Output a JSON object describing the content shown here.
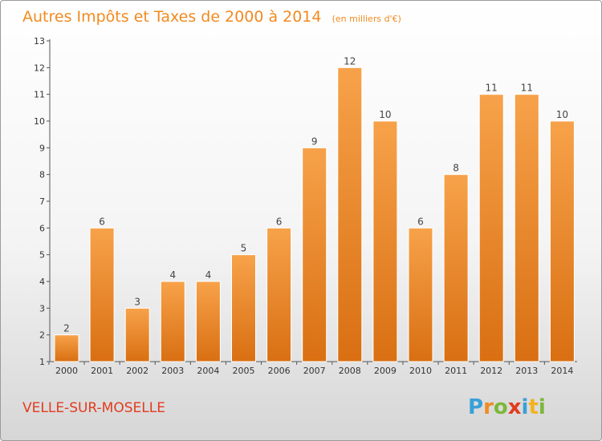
{
  "chart_data": {
    "type": "bar",
    "title": "Autres Impôts et Taxes de 2000 à 2014",
    "subtitle": "(en milliers d'€)",
    "categories": [
      "2000",
      "2001",
      "2002",
      "2003",
      "2004",
      "2005",
      "2006",
      "2007",
      "2008",
      "2009",
      "2010",
      "2011",
      "2012",
      "2013",
      "2014"
    ],
    "values": [
      2,
      6,
      3,
      4,
      4,
      5,
      6,
      9,
      12,
      10,
      6,
      8,
      11,
      11,
      10
    ],
    "ylim": [
      1,
      13
    ],
    "yticks": [
      "1",
      "2",
      "3",
      "4",
      "5",
      "6",
      "7",
      "8",
      "9",
      "10",
      "11",
      "12",
      "13"
    ],
    "grid": false,
    "bar_color": "#f28a1f",
    "xlabel": "",
    "ylabel": ""
  },
  "commune": "VELLE-SUR-MOSELLE",
  "logo": {
    "letters": [
      "P",
      "r",
      "o",
      "x",
      "i",
      "t",
      "i"
    ],
    "colors": [
      "#3aa0d8",
      "#f28a1f",
      "#7cb83a",
      "#e23c1e",
      "#3aa0d8",
      "#f2b31f",
      "#7cb83a"
    ]
  }
}
